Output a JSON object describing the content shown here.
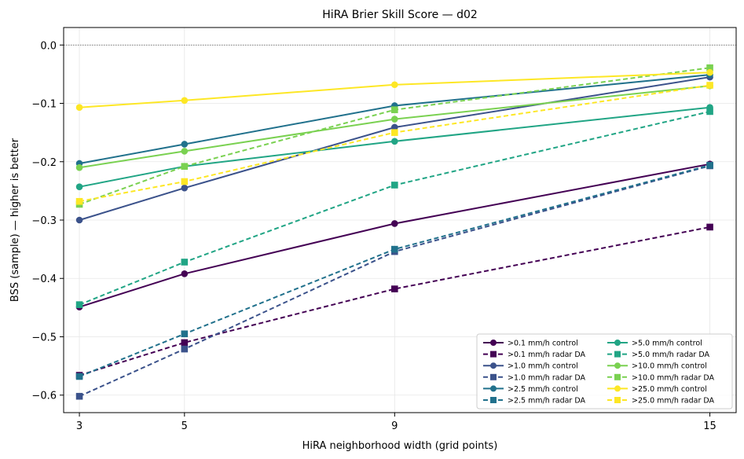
{
  "chart_data": {
    "type": "line",
    "title": "HiRA Brier Skill Score — d02",
    "xlabel": "HiRA neighborhood width (grid points)",
    "ylabel": "BSS (sample) — higher is better",
    "x": [
      3,
      5,
      9,
      15
    ],
    "x_ticks": [
      "3",
      "5",
      "9",
      "15"
    ],
    "y_ticks": [
      "0.0",
      "−0.1",
      "−0.2",
      "−0.3",
      "−0.4",
      "−0.5",
      "−0.6"
    ],
    "y_tick_values": [
      0.0,
      -0.1,
      -0.2,
      -0.3,
      -0.4,
      -0.5,
      -0.6
    ],
    "xlim": [
      2.7,
      15.5
    ],
    "ylim": [
      -0.63,
      0.03
    ],
    "grid": true,
    "reference_line": 0.0,
    "legend_position": "lower-right",
    "series": [
      {
        "name": ">0.1 mm/h control",
        "color": "#440154",
        "style": "solid",
        "marker": "circle",
        "values": [
          -0.449,
          -0.392,
          -0.306,
          -0.204
        ]
      },
      {
        "name": ">0.1 mm/h radar DA",
        "color": "#440154",
        "style": "dashed",
        "marker": "square",
        "values": [
          -0.566,
          -0.51,
          -0.418,
          -0.312
        ]
      },
      {
        "name": ">1.0 mm/h control",
        "color": "#3b528b",
        "style": "solid",
        "marker": "circle",
        "values": [
          -0.3,
          -0.245,
          -0.141,
          -0.055
        ]
      },
      {
        "name": ">1.0 mm/h radar DA",
        "color": "#3b528b",
        "style": "dashed",
        "marker": "square",
        "values": [
          -0.602,
          -0.521,
          -0.354,
          -0.207
        ]
      },
      {
        "name": ">2.5 mm/h control",
        "color": "#21718c",
        "style": "solid",
        "marker": "circle",
        "values": [
          -0.203,
          -0.17,
          -0.104,
          -0.051
        ]
      },
      {
        "name": ">2.5 mm/h radar DA",
        "color": "#21718c",
        "style": "dashed",
        "marker": "square",
        "values": [
          -0.568,
          -0.495,
          -0.35,
          -0.206
        ]
      },
      {
        "name": ">5.0 mm/h control",
        "color": "#21a585",
        "style": "solid",
        "marker": "circle",
        "values": [
          -0.243,
          -0.208,
          -0.165,
          -0.107
        ]
      },
      {
        "name": ">5.0 mm/h radar DA",
        "color": "#21a585",
        "style": "dashed",
        "marker": "square",
        "values": [
          -0.445,
          -0.372,
          -0.24,
          -0.114
        ]
      },
      {
        "name": ">10.0 mm/h control",
        "color": "#7ad151",
        "style": "solid",
        "marker": "circle",
        "values": [
          -0.21,
          -0.182,
          -0.127,
          -0.07
        ]
      },
      {
        "name": ">10.0 mm/h radar DA",
        "color": "#7ad151",
        "style": "dashed",
        "marker": "square",
        "values": [
          -0.273,
          -0.208,
          -0.111,
          -0.039
        ]
      },
      {
        "name": ">25.0 mm/h control",
        "color": "#fde725",
        "style": "solid",
        "marker": "circle",
        "values": [
          -0.107,
          -0.095,
          -0.068,
          -0.047
        ]
      },
      {
        "name": ">25.0 mm/h radar DA",
        "color": "#fde725",
        "style": "dashed",
        "marker": "square",
        "values": [
          -0.268,
          -0.234,
          -0.15,
          -0.069
        ]
      }
    ]
  }
}
